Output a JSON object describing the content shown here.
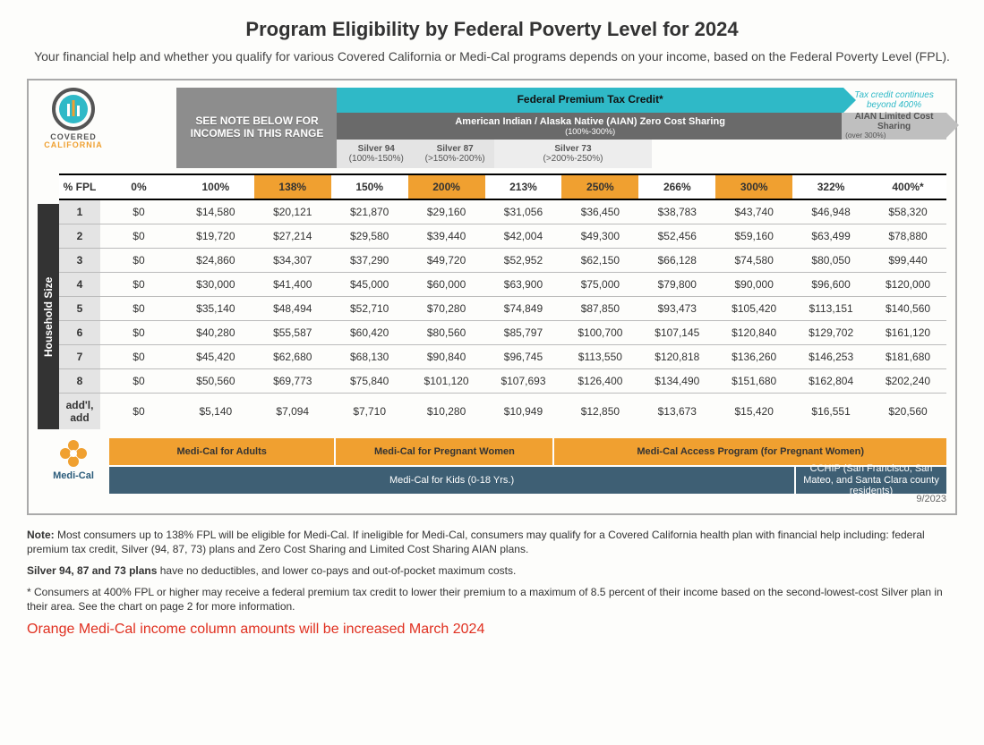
{
  "title": "Program Eligibility by Federal Poverty Level for 2024",
  "subtitle": "Your financial help and whether you qualify for various Covered California or Medi-Cal programs depends on your income,\nbased on the Federal Poverty Level (FPL).",
  "logo": {
    "line1": "COVERED",
    "line2": "CALIFORNIA"
  },
  "bands": {
    "note_box": "SEE NOTE BELOW FOR INCOMES IN THIS RANGE",
    "teal_label": "Federal Premium Tax Credit*",
    "teal_tail": "Tax credit continues beyond 400%",
    "aian_main": "American Indian / Alaska Native (AIAN) Zero Cost Sharing",
    "aian_main_sub": "(100%-300%)",
    "aian_tail": "AIAN Limited Cost Sharing",
    "aian_tail_sub": "(over 300%)",
    "silver94": "Silver 94",
    "silver94_sub": "(100%-150%)",
    "silver87": "Silver 87",
    "silver87_sub": "(>150%-200%)",
    "silver73": "Silver 73",
    "silver73_sub": "(>200%-250%)"
  },
  "table": {
    "vlabel": "Household Size",
    "header_label": "% FPL",
    "highlight_cols": [
      3,
      5,
      7,
      9
    ],
    "columns": [
      "0%",
      "100%",
      "138%",
      "150%",
      "200%",
      "213%",
      "250%",
      "266%",
      "300%",
      "322%",
      "400%*"
    ],
    "row_labels": [
      "1",
      "2",
      "3",
      "4",
      "5",
      "6",
      "7",
      "8",
      "add'l, add"
    ],
    "rows": [
      [
        "$0",
        "$14,580",
        "$20,121",
        "$21,870",
        "$29,160",
        "$31,056",
        "$36,450",
        "$38,783",
        "$43,740",
        "$46,948",
        "$58,320"
      ],
      [
        "$0",
        "$19,720",
        "$27,214",
        "$29,580",
        "$39,440",
        "$42,004",
        "$49,300",
        "$52,456",
        "$59,160",
        "$63,499",
        "$78,880"
      ],
      [
        "$0",
        "$24,860",
        "$34,307",
        "$37,290",
        "$49,720",
        "$52,952",
        "$62,150",
        "$66,128",
        "$74,580",
        "$80,050",
        "$99,440"
      ],
      [
        "$0",
        "$30,000",
        "$41,400",
        "$45,000",
        "$60,000",
        "$63,900",
        "$75,000",
        "$79,800",
        "$90,000",
        "$96,600",
        "$120,000"
      ],
      [
        "$0",
        "$35,140",
        "$48,494",
        "$52,710",
        "$70,280",
        "$74,849",
        "$87,850",
        "$93,473",
        "$105,420",
        "$113,151",
        "$140,560"
      ],
      [
        "$0",
        "$40,280",
        "$55,587",
        "$60,420",
        "$80,560",
        "$85,797",
        "$100,700",
        "$107,145",
        "$120,840",
        "$129,702",
        "$161,120"
      ],
      [
        "$0",
        "$45,420",
        "$62,680",
        "$68,130",
        "$90,840",
        "$96,745",
        "$113,550",
        "$120,818",
        "$136,260",
        "$146,253",
        "$181,680"
      ],
      [
        "$0",
        "$50,560",
        "$69,773",
        "$75,840",
        "$101,120",
        "$107,693",
        "$126,400",
        "$134,490",
        "$151,680",
        "$162,804",
        "$202,240"
      ],
      [
        "$0",
        "$5,140",
        "$7,094",
        "$7,710",
        "$10,280",
        "$10,949",
        "$12,850",
        "$13,673",
        "$15,420",
        "$16,551",
        "$20,560"
      ]
    ]
  },
  "programs": {
    "medical_label": "Medi-Cal",
    "row1": [
      {
        "label": "Medi-Cal for Adults",
        "class": "orange",
        "flex": 27
      },
      {
        "label": "Medi-Cal for Pregnant Women",
        "class": "orange",
        "flex": 26
      },
      {
        "label": "Medi-Cal Access Program (for Pregnant Women)",
        "class": "orange",
        "flex": 47
      }
    ],
    "row2": [
      {
        "label": "Medi-Cal for Kids (0-18 Yrs.)",
        "class": "navy",
        "flex": 82
      },
      {
        "label": "CCHIP (San Francisco, San Mateo, and Santa Clara county residents)",
        "class": "navy",
        "flex": 18
      }
    ]
  },
  "notes": {
    "n1_bold": "Note:",
    "n1": " Most consumers up to 138% FPL will be eligible for Medi-Cal. If ineligible for Medi-Cal, consumers may qualify for a Covered California health plan with financial help including: federal premium tax credit, Silver (94, 87, 73) plans and Zero Cost Sharing and Limited Cost Sharing AIAN plans.",
    "n2_bold": "Silver 94, 87 and 73 plans",
    "n2": " have no deductibles, and lower co-pays and out-of-pocket maximum costs.",
    "n3": "* Consumers at 400% FPL or higher may receive a federal premium tax credit to lower their premium to a maximum of 8.5 percent of their income based on the second-lowest-cost Silver plan in their area. See the chart on page 2 for more information.",
    "red": "Orange Medi-Cal income column amounts will be increased March 2024",
    "date": "9/2023"
  },
  "colors": {
    "teal": "#2fb9c7",
    "orange": "#f0a030",
    "navy": "#3e5f74",
    "grey_dark": "#6a6a6a",
    "grey_light": "#bfbfbf",
    "red": "#e03020"
  }
}
